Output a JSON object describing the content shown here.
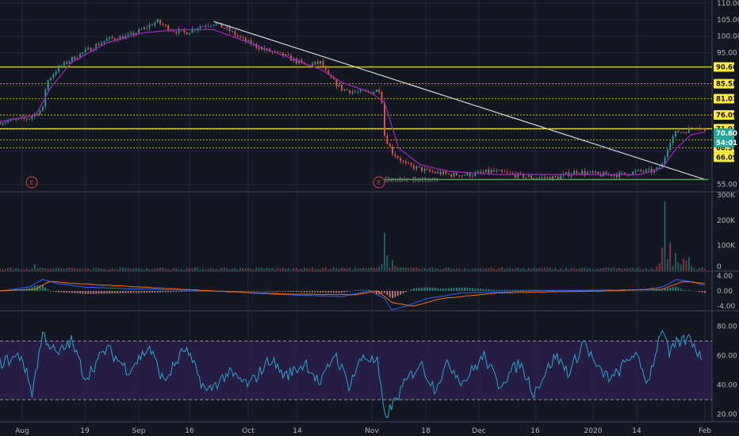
{
  "colors": {
    "background": "#131722",
    "grid": "#232734",
    "up": "#26a69a",
    "down": "#ef5350",
    "ma": "#9c27b0",
    "level_line": "#ffeb3b",
    "trendline": "#d1d4dc",
    "support": "#4caf50",
    "macd_line": "#2962ff",
    "signal_line": "#ff6d00",
    "rsi_line": "#2aa4c9",
    "rsi_band": "#2a1f4a"
  },
  "chart_data": {
    "type": "candlestick",
    "time_axis": {
      "labels": [
        "Aug",
        "19",
        "Sep",
        "16",
        "Oct",
        "14",
        "Nov",
        "18",
        "Dec",
        "16",
        "2020",
        "14",
        "Feb"
      ]
    },
    "price_panel": {
      "y_ticks": [
        "110.00",
        "105.00",
        "100.00",
        "95.00",
        "55.00"
      ],
      "ylim": [
        53,
        111
      ],
      "price_path": [
        [
          0,
          74
        ],
        [
          8,
          75
        ],
        [
          12,
          78
        ],
        [
          13,
          86
        ],
        [
          16,
          90
        ],
        [
          20,
          93
        ],
        [
          25,
          96
        ],
        [
          30,
          99
        ],
        [
          36,
          100
        ],
        [
          40,
          102
        ],
        [
          44,
          104.5
        ],
        [
          48,
          102
        ],
        [
          52,
          101
        ],
        [
          56,
          103
        ],
        [
          60,
          104
        ],
        [
          64,
          102
        ],
        [
          68,
          99
        ],
        [
          74,
          96
        ],
        [
          80,
          94
        ],
        [
          86,
          91
        ],
        [
          90,
          92
        ],
        [
          92,
          88
        ],
        [
          96,
          84
        ],
        [
          100,
          83
        ],
        [
          104,
          83
        ],
        [
          107,
          84
        ],
        [
          108,
          70
        ],
        [
          110,
          65
        ],
        [
          114,
          61
        ],
        [
          120,
          59
        ],
        [
          126,
          58
        ],
        [
          132,
          58
        ],
        [
          138,
          59
        ],
        [
          144,
          58
        ],
        [
          150,
          57
        ],
        [
          156,
          57
        ],
        [
          162,
          59
        ],
        [
          168,
          58
        ],
        [
          174,
          58
        ],
        [
          180,
          59
        ],
        [
          184,
          59
        ],
        [
          186,
          61
        ],
        [
          188,
          68
        ],
        [
          190,
          71
        ],
        [
          192,
          71
        ],
        [
          194,
          72
        ],
        [
          196,
          73
        ],
        [
          198,
          71
        ]
      ],
      "ma_path": [
        [
          0,
          74
        ],
        [
          10,
          76
        ],
        [
          14,
          84
        ],
        [
          20,
          92
        ],
        [
          30,
          98
        ],
        [
          40,
          101
        ],
        [
          50,
          102
        ],
        [
          60,
          102
        ],
        [
          70,
          98
        ],
        [
          80,
          94
        ],
        [
          90,
          90
        ],
        [
          96,
          86
        ],
        [
          104,
          83
        ],
        [
          108,
          80
        ],
        [
          112,
          66
        ],
        [
          118,
          61
        ],
        [
          126,
          59
        ],
        [
          140,
          58
        ],
        [
          160,
          58
        ],
        [
          180,
          58
        ],
        [
          186,
          60
        ],
        [
          190,
          66
        ],
        [
          194,
          70
        ],
        [
          198,
          71
        ]
      ],
      "levels": [
        "90.66",
        "85.58",
        "81.03",
        "76.09",
        "71.92",
        "71.81",
        "68.56",
        "66.09"
      ],
      "price_tags": [
        {
          "value": "70.60",
          "kind": "last"
        },
        {
          "value": "54:01",
          "kind": "countdown"
        }
      ],
      "trendline": {
        "from": [
          60,
          104.5
        ],
        "to": [
          198,
          56.5
        ]
      },
      "support_line": {
        "from": [
          108,
          56.5
        ],
        "to": [
          199,
          56.5
        ]
      },
      "annotation": "Double Bottom",
      "event_marker": "E"
    },
    "volume_panel": {
      "y_ticks": [
        "300K",
        "200K",
        "100K",
        "0"
      ],
      "ylim": [
        0,
        310000
      ],
      "spikes": [
        {
          "x": 10,
          "value": 25000
        },
        {
          "x": 108,
          "value": 150000
        },
        {
          "x": 109,
          "value": 60000
        },
        {
          "x": 110,
          "value": 40000
        },
        {
          "x": 186,
          "value": 90000
        },
        {
          "x": 187,
          "value": 275000
        },
        {
          "x": 188,
          "value": 110000
        },
        {
          "x": 190,
          "value": 70000
        },
        {
          "x": 192,
          "value": 45000
        }
      ]
    },
    "macd_panel": {
      "y_ticks": [
        "4.00",
        "0.00",
        "-4.00"
      ],
      "ylim": [
        -5,
        5
      ],
      "macd_path": [
        [
          0,
          0
        ],
        [
          8,
          1
        ],
        [
          12,
          3
        ],
        [
          16,
          2
        ],
        [
          24,
          1
        ],
        [
          40,
          0.5
        ],
        [
          60,
          0
        ],
        [
          80,
          -1
        ],
        [
          96,
          -1.5
        ],
        [
          104,
          0
        ],
        [
          108,
          -2
        ],
        [
          110,
          -5
        ],
        [
          114,
          -4
        ],
        [
          120,
          -2
        ],
        [
          130,
          -0.5
        ],
        [
          150,
          0
        ],
        [
          180,
          0.3
        ],
        [
          186,
          1
        ],
        [
          190,
          3
        ],
        [
          194,
          2.5
        ],
        [
          198,
          1.5
        ]
      ],
      "signal_path": [
        [
          0,
          0
        ],
        [
          10,
          0.5
        ],
        [
          14,
          2.5
        ],
        [
          20,
          2
        ],
        [
          40,
          1
        ],
        [
          60,
          0
        ],
        [
          80,
          -0.8
        ],
        [
          100,
          -1
        ],
        [
          106,
          0
        ],
        [
          110,
          -3
        ],
        [
          116,
          -4
        ],
        [
          124,
          -2
        ],
        [
          140,
          -0.5
        ],
        [
          170,
          0
        ],
        [
          186,
          0.5
        ],
        [
          192,
          2.5
        ],
        [
          198,
          2
        ]
      ]
    },
    "rsi_panel": {
      "y_ticks": [
        "80.00",
        "60.00",
        "40.00",
        "20.00"
      ],
      "ylim": [
        15,
        90
      ],
      "upper": 70,
      "lower": 30,
      "rsi_path": [
        [
          0,
          55
        ],
        [
          6,
          60
        ],
        [
          9,
          35
        ],
        [
          12,
          75
        ],
        [
          16,
          60
        ],
        [
          20,
          70
        ],
        [
          24,
          45
        ],
        [
          30,
          65
        ],
        [
          36,
          50
        ],
        [
          42,
          66
        ],
        [
          46,
          42
        ],
        [
          52,
          65
        ],
        [
          58,
          35
        ],
        [
          64,
          48
        ],
        [
          70,
          40
        ],
        [
          76,
          58
        ],
        [
          80,
          46
        ],
        [
          86,
          55
        ],
        [
          90,
          40
        ],
        [
          94,
          62
        ],
        [
          98,
          40
        ],
        [
          102,
          60
        ],
        [
          106,
          55
        ],
        [
          108,
          18
        ],
        [
          110,
          25
        ],
        [
          114,
          42
        ],
        [
          118,
          55
        ],
        [
          122,
          38
        ],
        [
          126,
          55
        ],
        [
          130,
          42
        ],
        [
          136,
          60
        ],
        [
          140,
          40
        ],
        [
          146,
          55
        ],
        [
          150,
          35
        ],
        [
          156,
          60
        ],
        [
          160,
          48
        ],
        [
          164,
          70
        ],
        [
          168,
          50
        ],
        [
          172,
          44
        ],
        [
          178,
          62
        ],
        [
          182,
          42
        ],
        [
          186,
          80
        ],
        [
          188,
          60
        ],
        [
          190,
          68
        ],
        [
          194,
          72
        ],
        [
          197,
          58
        ]
      ]
    }
  }
}
